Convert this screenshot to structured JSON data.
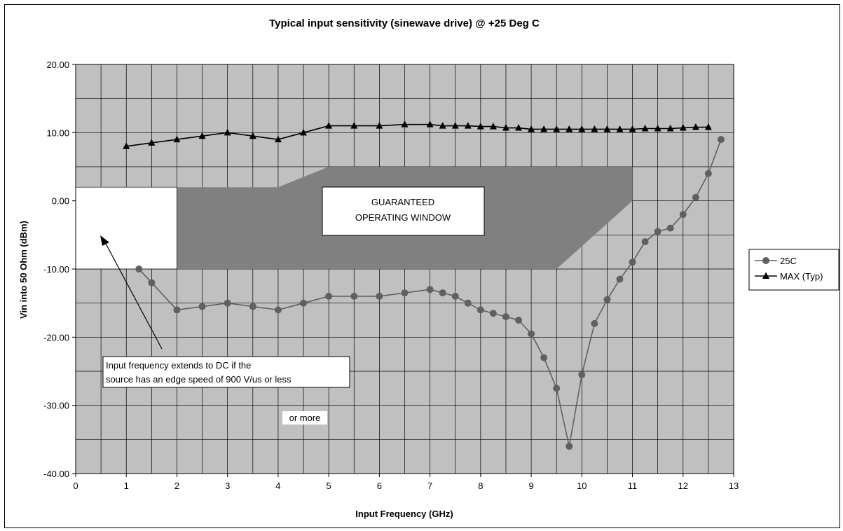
{
  "chart_data": {
    "type": "line",
    "title": "Typical input sensitivity (sinewave drive) @ +25 Deg C",
    "xlabel": "Input Frequency (GHz)",
    "ylabel": "Vin into 50 Ohm (dBm)",
    "xlim": [
      0,
      13
    ],
    "ylim": [
      -40,
      20
    ],
    "xticks": [
      "0",
      "1",
      "2",
      "3",
      "4",
      "5",
      "6",
      "7",
      "8",
      "9",
      "10",
      "11",
      "12",
      "13"
    ],
    "yticks": [
      "20.00",
      "10.00",
      "0.00",
      "-10.00",
      "-20.00",
      "-30.00",
      "-40.00"
    ],
    "grid": true,
    "legend_position": "right",
    "series": [
      {
        "name": "25C",
        "marker": "circle",
        "color": "#606060",
        "x": [
          1.25,
          1.5,
          2,
          2.5,
          3,
          3.5,
          4,
          4.5,
          5,
          5.5,
          6,
          6.5,
          7,
          7.25,
          7.5,
          7.75,
          8,
          8.25,
          8.5,
          8.75,
          9,
          9.25,
          9.5,
          9.75,
          10,
          10.25,
          10.5,
          10.75,
          11,
          11.25,
          11.5,
          11.75,
          12,
          12.25,
          12.5,
          12.75
        ],
        "y": [
          -10,
          -12,
          -16,
          -15.5,
          -15,
          -15.5,
          -16,
          -15,
          -14,
          -14,
          -14,
          -13.5,
          -13,
          -13.5,
          -14,
          -15,
          -16,
          -16.5,
          -17,
          -17.5,
          -19.5,
          -23,
          -27.5,
          -36,
          -25.5,
          -18,
          -14.5,
          -11.5,
          -9,
          -6,
          -4.5,
          -4,
          -2,
          0.5,
          4,
          9
        ]
      },
      {
        "name": "MAX (Typ)",
        "marker": "triangle",
        "color": "#000000",
        "x": [
          1,
          1.5,
          2,
          2.5,
          3,
          3.5,
          4,
          4.5,
          5,
          5.5,
          6,
          6.5,
          7,
          7.25,
          7.5,
          7.75,
          8,
          8.25,
          8.5,
          8.75,
          9,
          9.25,
          9.5,
          9.75,
          10,
          10.25,
          10.5,
          10.75,
          11,
          11.25,
          11.5,
          11.75,
          12,
          12.25,
          12.5
        ],
        "y": [
          8,
          8.5,
          9,
          9.5,
          10,
          9.5,
          9,
          10,
          11,
          11,
          11,
          11.2,
          11.2,
          11,
          11,
          11,
          10.9,
          10.9,
          10.7,
          10.7,
          10.5,
          10.5,
          10.5,
          10.5,
          10.5,
          10.5,
          10.5,
          10.5,
          10.5,
          10.6,
          10.6,
          10.6,
          10.7,
          10.8,
          10.8
        ]
      }
    ],
    "regions": {
      "guaranteed_window": {
        "points": [
          [
            2,
            2
          ],
          [
            4,
            2
          ],
          [
            5,
            5
          ],
          [
            11,
            5
          ],
          [
            11,
            0
          ],
          [
            9.5,
            -10
          ],
          [
            2,
            -10
          ]
        ],
        "color": "#808080"
      },
      "dc_extension": {
        "points": [
          [
            0,
            2
          ],
          [
            2,
            2
          ],
          [
            2,
            -10
          ],
          [
            0,
            -10
          ]
        ],
        "color": "#ffffff"
      }
    },
    "annotations": {
      "window_label_line1": "GUARANTEED",
      "window_label_line2": "OPERATING WINDOW",
      "dc_note_line1": "Input frequency extends to DC if the",
      "dc_note_line2": "source has an edge speed of 900 V/us  or less",
      "or_more": "or more"
    },
    "colors": {
      "plot_background": "#c0c0c0",
      "gridline": "#000000"
    }
  }
}
